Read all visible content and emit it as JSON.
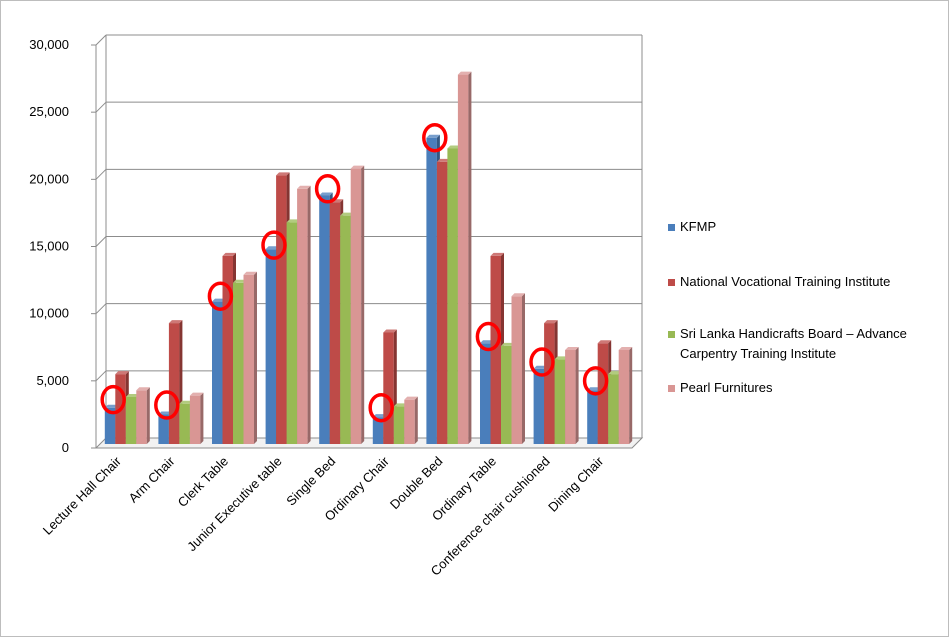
{
  "chart_data": {
    "type": "bar",
    "title": "",
    "xlabel": "",
    "ylabel": "",
    "ylim": [
      0,
      30000
    ],
    "y_ticks": [
      "0",
      "5,000",
      "10,000",
      "15,000",
      "20,000",
      "25,000",
      "30,000"
    ],
    "grid": true,
    "legend_position": "right",
    "categories": [
      "Lecture Hall Chair",
      "Arm Chair",
      "Clerk Table",
      "Junior Executive table",
      "Single Bed",
      "Ordinary Chair",
      "Double Bed",
      "Ordinary Table",
      "Conference chair cushioned",
      "Dining Chair"
    ],
    "series": [
      {
        "name": "KFMP",
        "color": "#4a7ebb",
        "values": [
          2700,
          2200,
          10600,
          14500,
          18500,
          2000,
          22800,
          7500,
          5600,
          4000
        ]
      },
      {
        "name": "National Vocational Training Institute",
        "color": "#be4b48",
        "values": [
          5200,
          9000,
          14000,
          20000,
          18000,
          8300,
          21000,
          14000,
          9000,
          7500
        ]
      },
      {
        "name": "Sri Lanka Handicrafts Board – Advance Carpentry Training Institute",
        "legend_lines": [
          "Sri Lanka Handicrafts Board – Advance",
          "Carpentry Training Institute"
        ],
        "color": "#98b954",
        "values": [
          3500,
          3000,
          12000,
          16500,
          17000,
          2800,
          22000,
          7300,
          6300,
          5200
        ]
      },
      {
        "name": "Pearl Furnitures",
        "color": "#d99694",
        "values": [
          4000,
          3600,
          12600,
          19000,
          20500,
          3300,
          27500,
          11000,
          7000,
          7000
        ]
      }
    ],
    "highlights": [
      {
        "category": "Lecture Hall Chair",
        "value": 3300
      },
      {
        "category": "Arm Chair",
        "value": 2900
      },
      {
        "category": "Clerk Table",
        "value": 11000
      },
      {
        "category": "Junior Executive table",
        "value": 14800
      },
      {
        "category": "Single Bed",
        "value": 19000
      },
      {
        "category": "Ordinary Chair",
        "value": 2700
      },
      {
        "category": "Double Bed",
        "value": 22800
      },
      {
        "category": "Ordinary Table",
        "value": 8000
      },
      {
        "category": "Conference chair cushioned",
        "value": 6100
      },
      {
        "category": "Dining Chair",
        "value": 4700
      }
    ],
    "highlight_color": "#ff0000"
  }
}
